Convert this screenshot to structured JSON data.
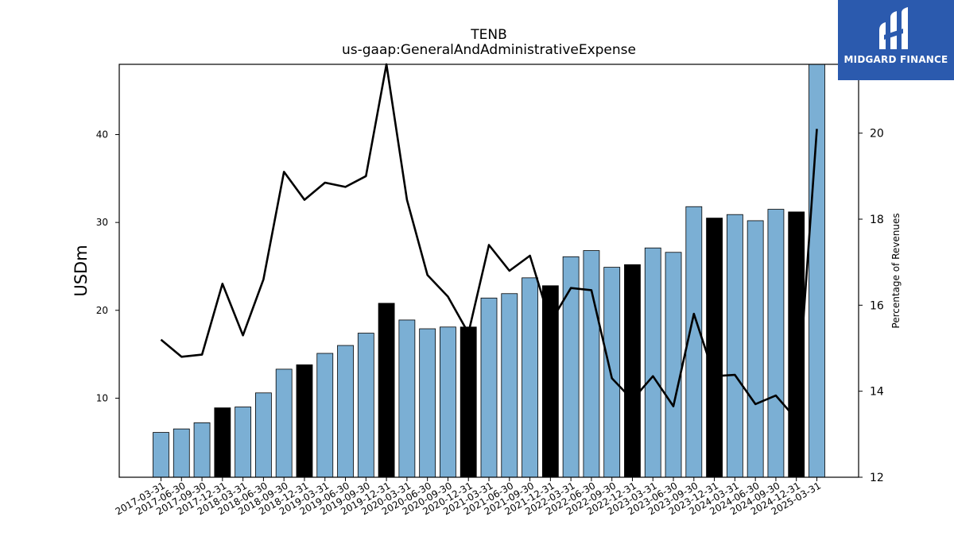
{
  "brand": {
    "name": "MIDGARD FINANCE",
    "bg_color": "#2B5AAE"
  },
  "chart_data": {
    "type": "bar",
    "title": "TENB",
    "subtitle": "us-gaap:GeneralAndAdministrativeExpense",
    "ylabel": "USDm",
    "y2label": "Percentage of Revenues",
    "ylim": [
      1,
      48
    ],
    "y2lim": [
      12,
      21.6
    ],
    "yticks": [
      10,
      20,
      30,
      40
    ],
    "y2ticks": [
      12,
      14,
      16,
      18,
      20
    ],
    "categories": [
      "2017-03-31",
      "2017-06-30",
      "2017-09-30",
      "2017-12-31",
      "2018-03-31",
      "2018-06-30",
      "2018-09-30",
      "2018-12-31",
      "2019-03-31",
      "2019-06-30",
      "2019-09-30",
      "2019-12-31",
      "2020-03-31",
      "2020-06-30",
      "2020-09-30",
      "2020-12-31",
      "2021-03-31",
      "2021-06-30",
      "2021-09-30",
      "2021-12-31",
      "2022-03-31",
      "2022-06-30",
      "2022-09-30",
      "2022-12-31",
      "2023-03-31",
      "2023-06-30",
      "2023-09-30",
      "2023-12-31",
      "2024-03-31",
      "2024-06-30",
      "2024-09-30",
      "2024-12-31",
      "2025-03-31"
    ],
    "series": [
      {
        "values": [
          6.1,
          6.5,
          7.2,
          8.9,
          9.0,
          10.6,
          13.3,
          13.8,
          15.1,
          16.0,
          17.4,
          20.8,
          18.9,
          17.9,
          18.1,
          18.1,
          21.4,
          21.9,
          23.7,
          22.8,
          26.1,
          26.8,
          24.9,
          25.2,
          27.1,
          26.6,
          31.8,
          30.5,
          30.9,
          30.2,
          31.5,
          31.2,
          48.0
        ],
        "bar_color": "#7BAFD4",
        "highlight_color": "#000000",
        "highlight_every": "December quarter (YYYY-12-31)"
      },
      {
        "type": "line",
        "axis": "right",
        "values": [
          15.2,
          14.8,
          14.85,
          16.5,
          15.3,
          16.6,
          19.1,
          18.45,
          18.85,
          18.75,
          19.0,
          21.6,
          18.45,
          16.7,
          16.2,
          15.35,
          17.4,
          16.8,
          17.15,
          15.6,
          16.4,
          16.35,
          14.3,
          13.8,
          14.35,
          13.65,
          15.8,
          14.35,
          14.38,
          13.7,
          13.9,
          13.35,
          20.1
        ],
        "color": "#000000"
      }
    ]
  }
}
